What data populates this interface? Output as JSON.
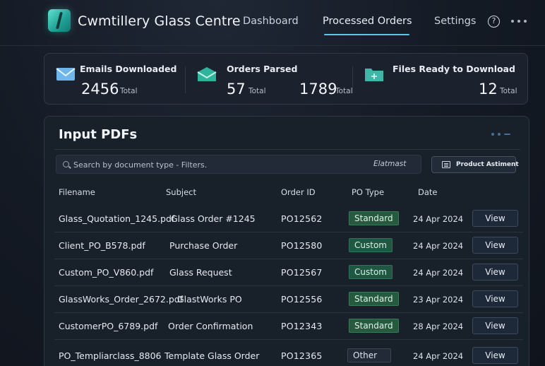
{
  "app": {
    "title": "Cwmtillery Glass Centre",
    "accent_color": "#5cc6e8",
    "logo_icon": "glass-pane-logo"
  },
  "nav": {
    "items": [
      {
        "label": "Dashboard",
        "active": false
      },
      {
        "label": "Processed Orders",
        "active": true
      },
      {
        "label": "Settings",
        "active": false
      }
    ],
    "help_icon": "question-circle-icon",
    "help_glyph": "?",
    "more_icon": "ellipsis-icon"
  },
  "stats": {
    "emails": {
      "label": "Emails Downloaded",
      "value": "2456",
      "unit": "Total",
      "icon": "envelope-icon"
    },
    "orders": {
      "label": "Orders Parsed",
      "value": "57",
      "unit": "Total",
      "value2": "1789",
      "unit2": "Total",
      "icon": "open-envelope-icon"
    },
    "files": {
      "label": "Files Ready to Download",
      "value": "12",
      "unit": "Total",
      "icon": "folder-plus-icon"
    }
  },
  "panel": {
    "title": "Input PDFs",
    "search_placeholder": "Search by document type - Filters.",
    "format_label": "Elatmast",
    "product_button": "Product Astiment",
    "columns": [
      "Filename",
      "Subject",
      "Order ID",
      "PO Type",
      "Date"
    ],
    "rows": [
      {
        "filename": "Glass_Quotation_1245.pdf",
        "subject": "Glass Order #1245",
        "order_id": "PO12562",
        "po_type": "Standard",
        "date": "24 Apr 2024",
        "action": "View"
      },
      {
        "filename": "Client_PO_B578.pdf",
        "subject": "Purchase Order",
        "order_id": "PO12580",
        "po_type": "Custom",
        "date": "24 Apr 2024",
        "action": "View"
      },
      {
        "filename": "Custom_PO_V860.pdf",
        "subject": "Glass Request",
        "order_id": "PO12567",
        "po_type": "Custom",
        "date": "24 Apr 2024",
        "action": "View"
      },
      {
        "filename": "GlassWorks_Order_2672.pdf",
        "subject": "GlastWorks PO",
        "order_id": "PO12556",
        "po_type": "Standard",
        "date": "23 Apr 2024",
        "action": "View"
      },
      {
        "filename": "CustomerPO_6789.pdf",
        "subject": "Order Confirmation",
        "order_id": "PO12343",
        "po_type": "Standard",
        "date": "28 Apr 2024",
        "action": "View"
      },
      {
        "filename": "PO_Templiarclass_8806",
        "subject": "Template Glass Order",
        "order_id": "PO12365",
        "po_type": "Other",
        "date": "24 Apr 2024",
        "action": "View"
      }
    ]
  }
}
